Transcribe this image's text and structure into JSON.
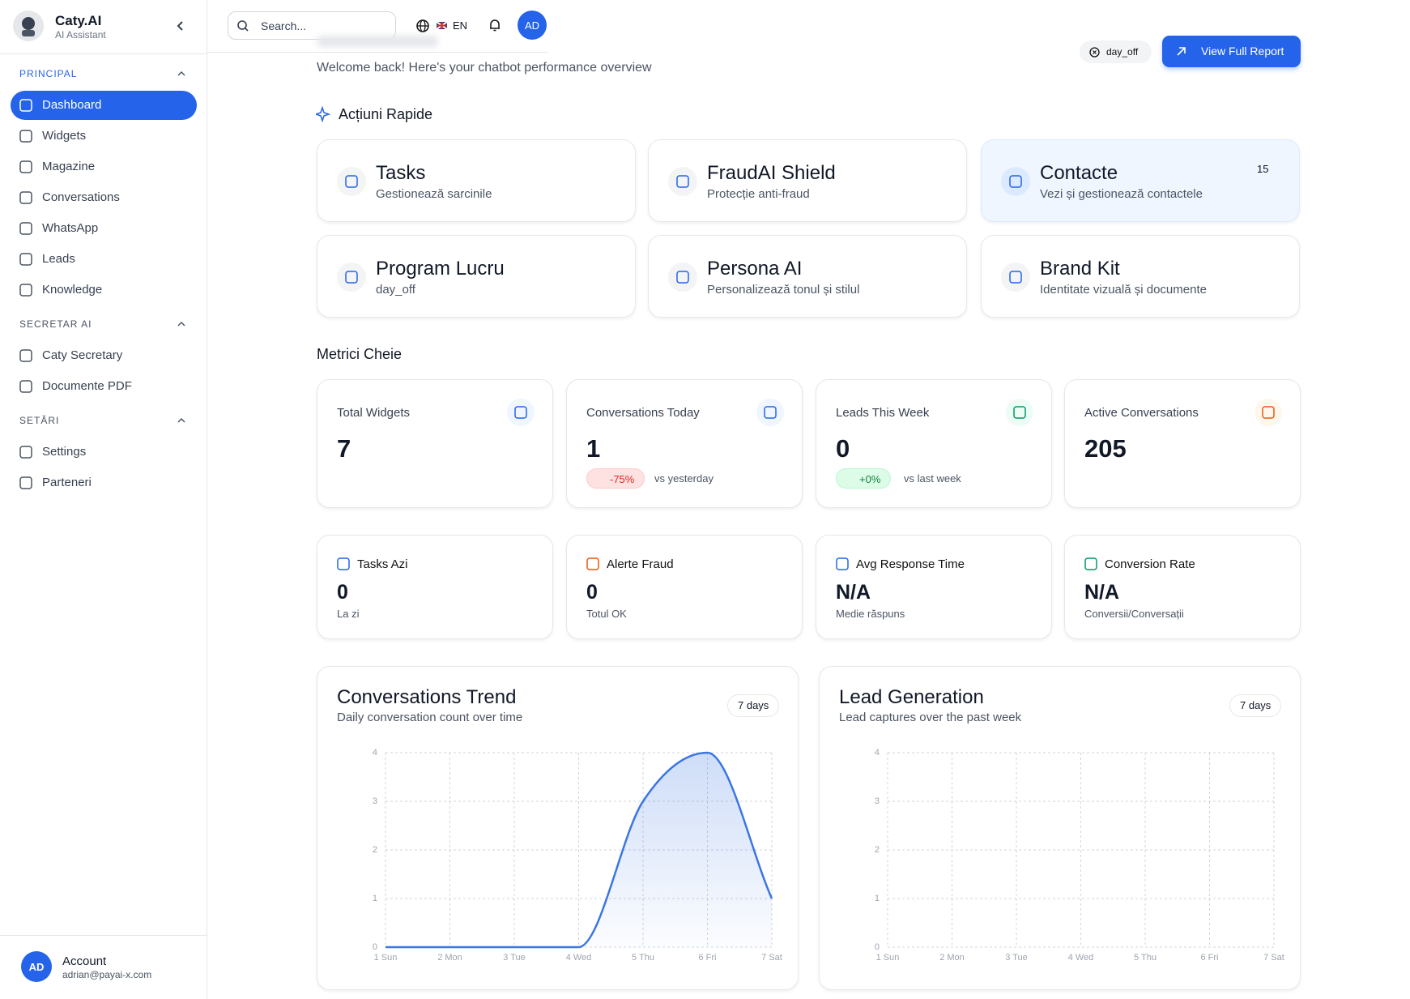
{
  "sidebar": {
    "brand": "Caty.AI",
    "tagline": "AI Assistant",
    "sections": [
      {
        "title": "PRINCIPAL",
        "items": [
          "Dashboard",
          "Widgets",
          "Magazine",
          "Conversations",
          "WhatsApp",
          "Leads",
          "Knowledge"
        ]
      },
      {
        "title": "SECRETAR AI",
        "items": [
          "Caty Secretary",
          "Documente PDF"
        ]
      },
      {
        "title": "SETĂRI",
        "items": [
          "Settings",
          "Parteneri"
        ]
      }
    ],
    "account": {
      "avatar": "AD",
      "label": "Account",
      "email": "adrian@payai-x.com"
    }
  },
  "topbar": {
    "search_placeholder": "Search...",
    "language": "EN",
    "avatar": "AD"
  },
  "header": {
    "subtitle": "Welcome back! Here's your chatbot performance overview",
    "status": "day_off",
    "button": "View Full Report"
  },
  "quick_actions": {
    "title": "Acțiuni Rapide",
    "cards": [
      {
        "title": "Tasks",
        "subtitle": "Gestionează sarcinile"
      },
      {
        "title": "FraudAI Shield",
        "subtitle": "Protecție anti-fraud"
      },
      {
        "title": "Contacte",
        "subtitle": "Vezi și gestionează contactele",
        "badge": "15"
      },
      {
        "title": "Program Lucru",
        "subtitle": "day_off"
      },
      {
        "title": "Persona AI",
        "subtitle": "Personalizează tonul și stilul"
      },
      {
        "title": "Brand Kit",
        "subtitle": "Identitate vizuală și documente"
      }
    ]
  },
  "metrics": {
    "title": "Metrici Cheie",
    "cards": [
      {
        "label": "Total Widgets",
        "value": "7"
      },
      {
        "label": "Conversations Today",
        "value": "1",
        "change": "-75%",
        "comparison": "vs yesterday"
      },
      {
        "label": "Leads This Week",
        "value": "0",
        "change": "+0%",
        "comparison": "vs last week"
      },
      {
        "label": "Active Conversations",
        "value": "205"
      }
    ],
    "stats": [
      {
        "label": "Tasks Azi",
        "value": "0",
        "note": "La zi"
      },
      {
        "label": "Alerte Fraud",
        "value": "0",
        "note": "Totul OK"
      },
      {
        "label": "Avg Response Time",
        "value": "N/A",
        "note": "Medie răspuns"
      },
      {
        "label": "Conversion Rate",
        "value": "N/A",
        "note": "Conversii/Conversații"
      }
    ]
  },
  "chart_data": [
    {
      "type": "line",
      "title": "Conversations Trend",
      "subtitle": "Daily conversation count over time",
      "badge": "7 days",
      "categories": [
        "1 Sun",
        "2 Mon",
        "3 Tue",
        "4 Wed",
        "5 Thu",
        "6 Fri",
        "7 Sat"
      ],
      "values": [
        0,
        0,
        0,
        0,
        3,
        4,
        1
      ],
      "color": "#3b76e1",
      "ylim": [
        0,
        4
      ],
      "yticks": [
        0,
        1,
        2,
        3,
        4
      ],
      "grid": true
    },
    {
      "type": "line",
      "title": "Lead Generation",
      "subtitle": "Lead captures over the past week",
      "badge": "7 days",
      "categories": [
        "1 Sun",
        "2 Mon",
        "3 Tue",
        "4 Wed",
        "5 Thu",
        "6 Fri",
        "7 Sat"
      ],
      "ylim": [
        0,
        4
      ],
      "yticks": [
        0,
        1,
        2,
        3,
        4
      ],
      "grid": true
    }
  ]
}
